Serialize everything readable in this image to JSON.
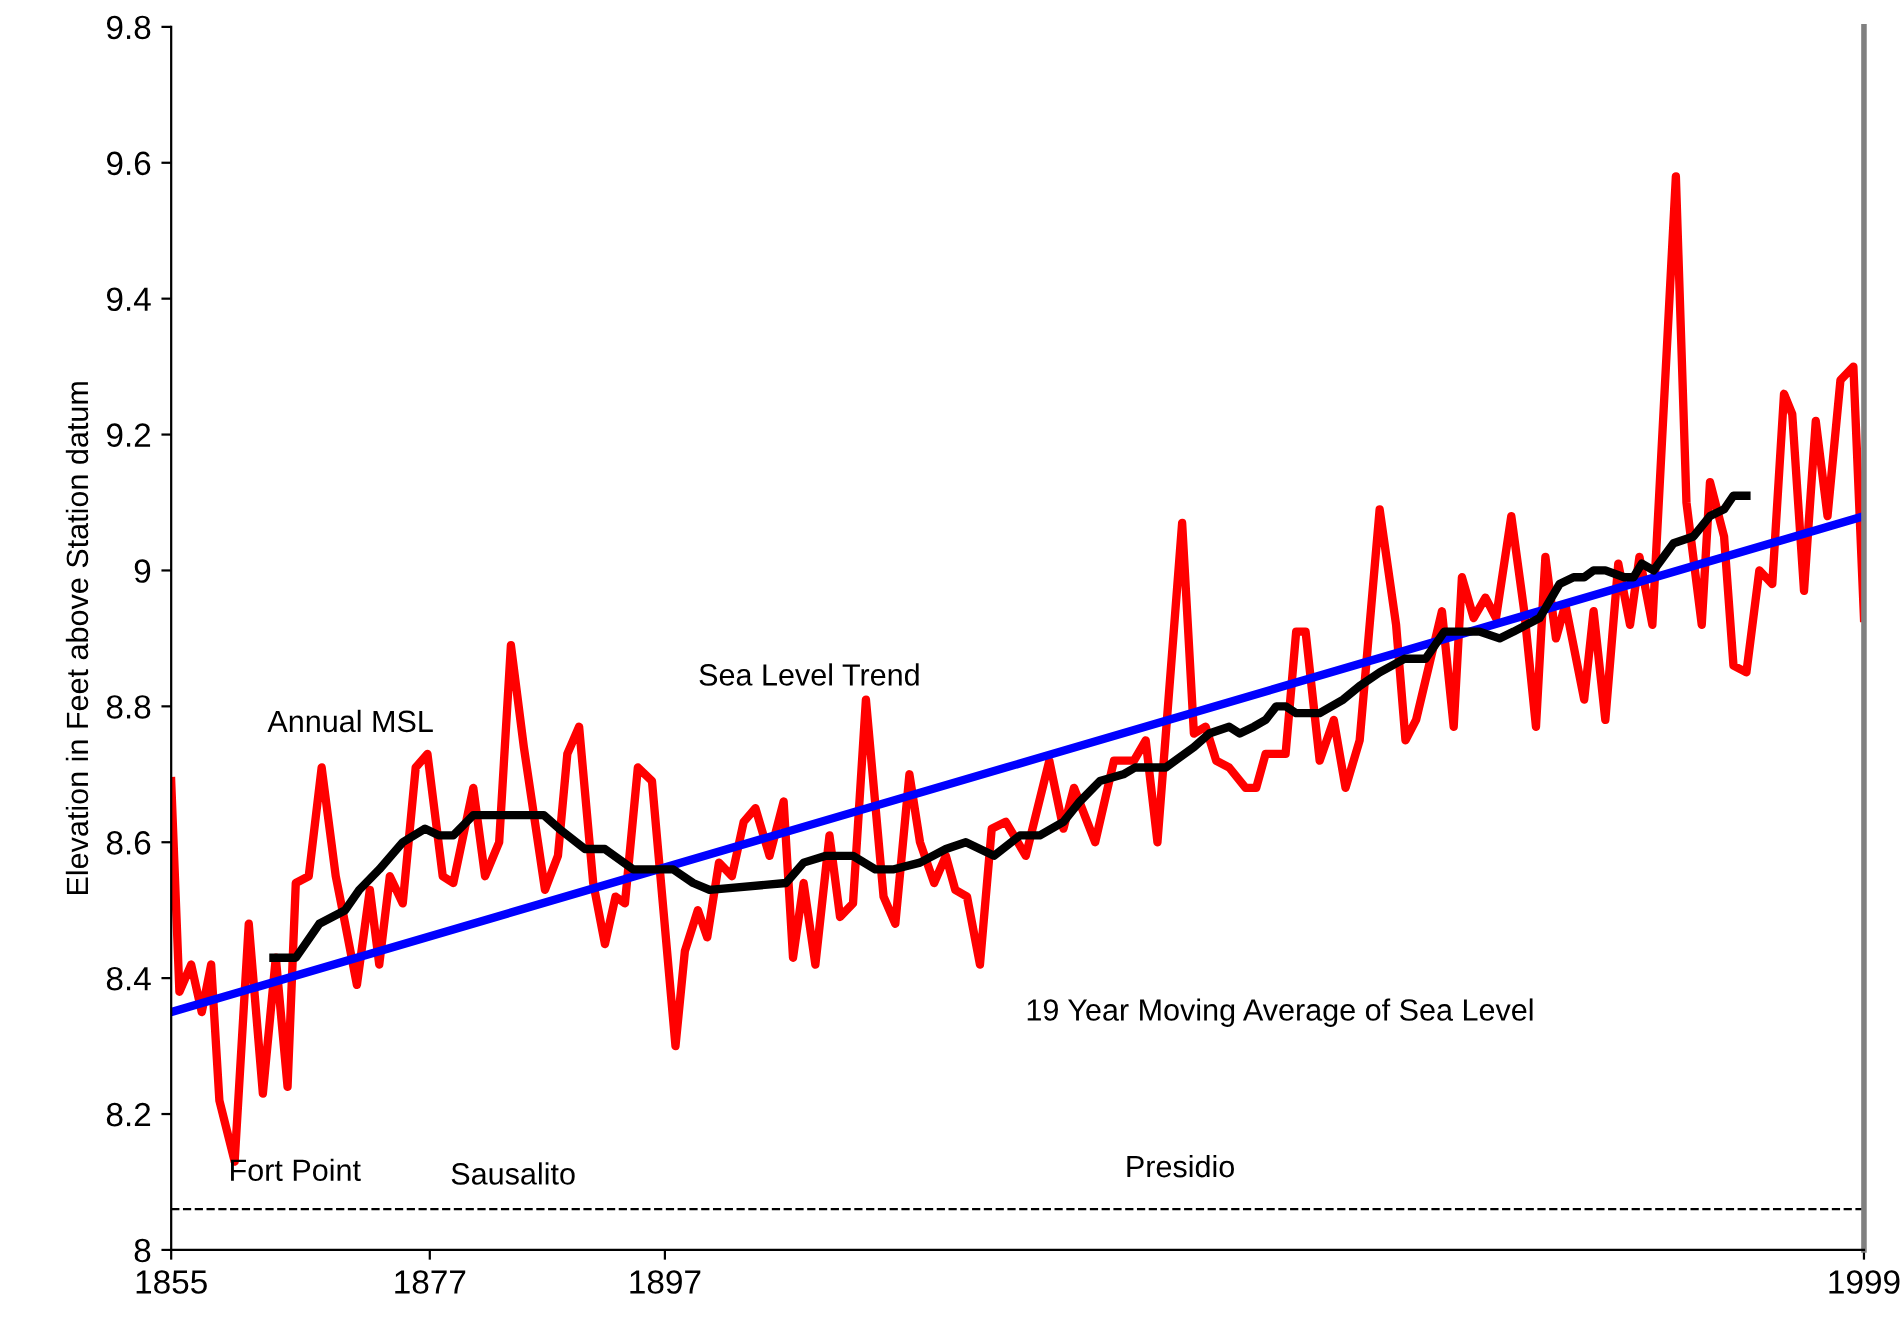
{
  "chart_data": {
    "type": "line",
    "ylabel": "Elevation in Feet above Station datum",
    "xlim": [
      1855,
      1999
    ],
    "xticks": [
      1855,
      1877,
      1897,
      1999
    ],
    "ylim": [
      8,
      9.8
    ],
    "yticks": [
      8,
      8.2,
      8.4,
      8.6,
      8.8,
      9,
      9.2,
      9.4,
      9.6,
      9.8
    ],
    "grid": false,
    "legend": false,
    "marker": "none",
    "line_style": "solid",
    "series": [
      {
        "color": "#ff0000",
        "x": [
          1855.0,
          1855.7,
          1856.7,
          1857.6,
          1858.4,
          1859.1,
          1860.4,
          1861.6,
          1862.8,
          1863.9,
          1864.9,
          1865.6,
          1866.7,
          1867.8,
          1869.0,
          1869.8,
          1870.8,
          1871.9,
          1872.7,
          1873.6,
          1874.7,
          1875.8,
          1876.8,
          1878.1,
          1879.0,
          1880.7,
          1881.7,
          1882.9,
          1883.9,
          1885.0,
          1886.8,
          1887.9,
          1888.7,
          1889.7,
          1890.9,
          1891.9,
          1892.8,
          1893.6,
          1894.7,
          1895.9,
          1897.9,
          1898.7,
          1899.8,
          1900.6,
          1901.6,
          1902.7,
          1903.7,
          1904.7,
          1905.9,
          1907.1,
          1907.9,
          1908.8,
          1909.8,
          1911.0,
          1911.9,
          1913.0,
          1914.1,
          1915.6,
          1916.6,
          1917.8,
          1918.7,
          1919.9,
          1920.9,
          1921.7,
          1922.7,
          1923.8,
          1924.8,
          1926.0,
          1927.7,
          1929.7,
          1930.9,
          1931.8,
          1933.6,
          1935.2,
          1936.9,
          1937.9,
          1938.9,
          1941.0,
          1942.0,
          1943.0,
          1943.9,
          1945.0,
          1946.4,
          1947.3,
          1948.1,
          1949.8,
          1950.7,
          1951.5,
          1952.7,
          1953.9,
          1954.9,
          1956.1,
          1957.8,
          1959.2,
          1960.0,
          1960.9,
          1963.1,
          1964.1,
          1964.8,
          1965.8,
          1966.8,
          1967.7,
          1969.0,
          1970.1,
          1971.1,
          1971.9,
          1972.8,
          1973.6,
          1975.2,
          1976.0,
          1977.0,
          1978.1,
          1979.1,
          1979.9,
          1981.0,
          1983.0,
          1983.9,
          1985.2,
          1985.9,
          1987.1,
          1987.9,
          1989.0,
          1990.1,
          1991.2,
          1992.2,
          1992.9,
          1993.9,
          1994.9,
          1995.9,
          1997.0,
          1998.1,
          1999.0
        ],
        "values": [
          8.69,
          8.38,
          8.42,
          8.35,
          8.42,
          8.22,
          8.13,
          8.48,
          8.23,
          8.43,
          8.24,
          8.54,
          8.55,
          8.71,
          8.55,
          8.48,
          8.39,
          8.53,
          8.42,
          8.55,
          8.51,
          8.71,
          8.73,
          8.55,
          8.54,
          8.68,
          8.55,
          8.6,
          8.89,
          8.74,
          8.53,
          8.58,
          8.73,
          8.77,
          8.54,
          8.45,
          8.52,
          8.51,
          8.71,
          8.69,
          8.3,
          8.44,
          8.5,
          8.46,
          8.57,
          8.55,
          8.63,
          8.65,
          8.58,
          8.66,
          8.43,
          8.54,
          8.42,
          8.61,
          8.49,
          8.51,
          8.81,
          8.52,
          8.48,
          8.7,
          8.6,
          8.54,
          8.58,
          8.53,
          8.52,
          8.42,
          8.62,
          8.63,
          8.58,
          8.72,
          8.62,
          8.68,
          8.6,
          8.72,
          8.72,
          8.75,
          8.6,
          9.07,
          8.76,
          8.77,
          8.72,
          8.71,
          8.68,
          8.68,
          8.73,
          8.73,
          8.91,
          8.91,
          8.72,
          8.78,
          8.68,
          8.75,
          9.09,
          8.92,
          8.75,
          8.78,
          8.94,
          8.77,
          8.99,
          8.93,
          8.96,
          8.93,
          9.08,
          8.94,
          8.77,
          9.02,
          8.9,
          8.95,
          8.81,
          8.94,
          8.78,
          9.01,
          8.92,
          9.02,
          8.92,
          9.58,
          9.1,
          8.92,
          9.13,
          9.05,
          8.86,
          8.85,
          9.0,
          8.98,
          9.26,
          9.23,
          8.97,
          9.22,
          9.08,
          9.28,
          9.3,
          8.93
        ]
      },
      {
        "color": "#0000ff",
        "x": [
          1855,
          1999
        ],
        "values": [
          8.35,
          9.08
        ]
      },
      {
        "color": "#000000",
        "x": [
          1863.7,
          1865.6,
          1867.6,
          1869.8,
          1871.0,
          1872.7,
          1874.7,
          1876.6,
          1877.8,
          1879.0,
          1880.7,
          1886.7,
          1888.0,
          1890.2,
          1891.9,
          1894.3,
          1897.7,
          1899.4,
          1900.8,
          1907.3,
          1908.8,
          1910.7,
          1913.0,
          1914.9,
          1916.4,
          1918.7,
          1920.9,
          1922.6,
          1925.0,
          1927.2,
          1928.9,
          1930.9,
          1932.3,
          1934.0,
          1936.0,
          1937.0,
          1939.6,
          1942.0,
          1943.3,
          1945.0,
          1945.9,
          1947.1,
          1948.1,
          1949.0,
          1949.8,
          1950.7,
          1952.7,
          1954.7,
          1956.1,
          1957.8,
          1959.9,
          1961.7,
          1963.3,
          1966.3,
          1968.0,
          1969.2,
          1971.4,
          1973.1,
          1974.3,
          1975.2,
          1976.0,
          1977.0,
          1978.6,
          1979.4,
          1980.1,
          1981.1,
          1982.8,
          1984.5,
          1985.9,
          1987.1,
          1987.9,
          1989.0
        ],
        "values": [
          8.43,
          8.43,
          8.48,
          8.5,
          8.53,
          8.56,
          8.6,
          8.62,
          8.61,
          8.61,
          8.64,
          8.64,
          8.62,
          8.59,
          8.59,
          8.56,
          8.56,
          8.54,
          8.53,
          8.54,
          8.57,
          8.58,
          8.58,
          8.56,
          8.56,
          8.57,
          8.59,
          8.6,
          8.58,
          8.61,
          8.61,
          8.63,
          8.66,
          8.69,
          8.7,
          8.71,
          8.71,
          8.74,
          8.76,
          8.77,
          8.76,
          8.77,
          8.78,
          8.8,
          8.8,
          8.79,
          8.79,
          8.81,
          8.83,
          8.85,
          8.87,
          8.87,
          8.91,
          8.91,
          8.9,
          8.91,
          8.93,
          8.98,
          8.99,
          8.99,
          9.0,
          9.0,
          8.99,
          8.99,
          9.01,
          9.0,
          9.04,
          9.05,
          9.08,
          9.09,
          9.11,
          9.11
        ]
      }
    ],
    "ref_lines": [
      {
        "axis": "y",
        "value": 8.06,
        "color": "#000000",
        "line_style": "dashed"
      }
    ],
    "annotations": [
      "Annual MSL",
      "Sea Level Trend",
      "19 Year Moving Average of Sea Level",
      "Fort Point",
      "Sausalito",
      "Presidio"
    ]
  }
}
